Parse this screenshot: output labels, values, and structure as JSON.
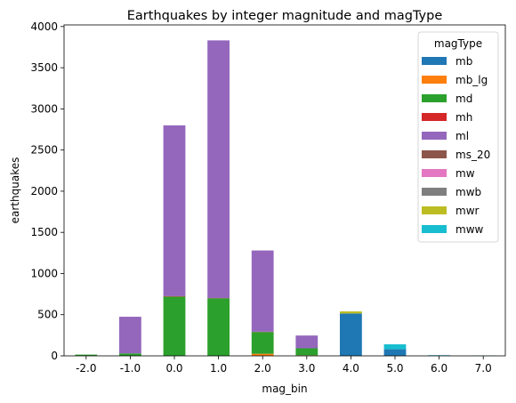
{
  "chart_data": {
    "type": "bar",
    "stacked": true,
    "title": "Earthquakes by integer magnitude and magType",
    "xlabel": "mag_bin",
    "ylabel": "earthquakes",
    "ylim": [
      0,
      4020
    ],
    "yticks": [
      0,
      500,
      1000,
      1500,
      2000,
      2500,
      3000,
      3500,
      4000
    ],
    "categories": [
      "-2.0",
      "-1.0",
      "0.0",
      "1.0",
      "2.0",
      "3.0",
      "4.0",
      "5.0",
      "6.0",
      "7.0"
    ],
    "legend_title": "magType",
    "legend_position": "top-right",
    "grid": false,
    "series": [
      {
        "name": "mb",
        "color": "#1f77b4",
        "values": [
          0,
          0,
          0,
          0,
          0,
          2,
          515,
          80,
          3,
          0
        ]
      },
      {
        "name": "mb_lg",
        "color": "#ff7f0e",
        "values": [
          0,
          0,
          0,
          0,
          25,
          5,
          0,
          0,
          0,
          0
        ]
      },
      {
        "name": "md",
        "color": "#2ca02c",
        "values": [
          15,
          30,
          720,
          700,
          265,
          85,
          0,
          0,
          0,
          0
        ]
      },
      {
        "name": "mh",
        "color": "#d62728",
        "values": [
          0,
          0,
          5,
          2,
          3,
          0,
          0,
          0,
          0,
          0
        ]
      },
      {
        "name": "ml",
        "color": "#9467bd",
        "values": [
          0,
          445,
          2075,
          3130,
          987,
          155,
          0,
          0,
          0,
          0
        ]
      },
      {
        "name": "ms_20",
        "color": "#8c564b",
        "values": [
          0,
          0,
          0,
          0,
          0,
          0,
          0,
          0,
          0,
          0
        ]
      },
      {
        "name": "mw",
        "color": "#e377c2",
        "values": [
          0,
          0,
          0,
          0,
          0,
          0,
          0,
          0,
          0,
          0
        ]
      },
      {
        "name": "mwb",
        "color": "#7f7f7f",
        "values": [
          0,
          0,
          0,
          0,
          0,
          0,
          0,
          0,
          0,
          0
        ]
      },
      {
        "name": "mwr",
        "color": "#bcbd22",
        "values": [
          0,
          0,
          0,
          0,
          0,
          0,
          25,
          0,
          0,
          0
        ]
      },
      {
        "name": "mww",
        "color": "#17becf",
        "values": [
          0,
          0,
          0,
          0,
          0,
          0,
          0,
          60,
          5,
          3
        ]
      }
    ]
  }
}
